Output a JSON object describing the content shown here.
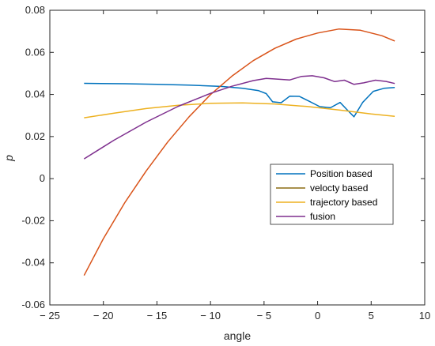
{
  "chart_data": {
    "type": "line",
    "xlabel": "angle",
    "ylabel": "p",
    "xlim": [
      -25,
      10
    ],
    "ylim": [
      -0.06,
      0.08
    ],
    "xticks": [
      -25,
      -20,
      -15,
      -10,
      -5,
      0,
      5,
      10
    ],
    "yticks": [
      -0.06,
      -0.04,
      -0.02,
      0,
      0.02,
      0.04,
      0.06,
      0.08
    ],
    "xtick_labels": [
      "− 25",
      "− 20",
      "− 15",
      "− 10",
      "− 5",
      "0",
      "5",
      "10"
    ],
    "ytick_labels": [
      "-0.06",
      "-0.04",
      "-0.02",
      "0",
      "0.02",
      "0.04",
      "0.06",
      "0.08"
    ],
    "grid": false,
    "legend_position": "lower-right",
    "series": [
      {
        "name": "Position based",
        "color": "#0072BD",
        "x": [
          -21.8,
          -18,
          -15,
          -12,
          -9,
          -7,
          -5.5,
          -4.8,
          -4.2,
          -3.4,
          -2.6,
          -1.7,
          -0.8,
          0.2,
          1.2,
          2.1,
          2.8,
          3.4,
          4.2,
          5.2,
          6.2,
          7.2
        ],
        "y": [
          0.0453,
          0.0451,
          0.0448,
          0.0444,
          0.0438,
          0.0429,
          0.0418,
          0.0404,
          0.0365,
          0.0361,
          0.0392,
          0.0391,
          0.0368,
          0.0342,
          0.0337,
          0.0362,
          0.0325,
          0.0294,
          0.0362,
          0.0415,
          0.0429,
          0.0433
        ]
      },
      {
        "name": "velocty based",
        "color": "#D95319",
        "legend_color": "#8C6D12",
        "x": [
          -21.8,
          -20,
          -18,
          -16,
          -14,
          -12,
          -10,
          -8,
          -6,
          -4,
          -2,
          0,
          2,
          4,
          6,
          7.2
        ],
        "y": [
          -0.046,
          -0.0285,
          -0.0114,
          0.0037,
          0.0174,
          0.0294,
          0.0399,
          0.0487,
          0.0561,
          0.0619,
          0.0663,
          0.0692,
          0.0711,
          0.0705,
          0.0679,
          0.0654
        ]
      },
      {
        "name": "trajectory based",
        "color": "#EDB120",
        "x": [
          -21.8,
          -19,
          -16,
          -13,
          -10,
          -7,
          -4,
          -1,
          2,
          5,
          7.2
        ],
        "y": [
          0.0289,
          0.0311,
          0.0333,
          0.0349,
          0.0358,
          0.036,
          0.0355,
          0.0343,
          0.0326,
          0.0307,
          0.0296
        ]
      },
      {
        "name": "fusion",
        "color": "#7E2F8E",
        "x": [
          -21.8,
          -19,
          -16,
          -13,
          -10,
          -8,
          -6,
          -4.8,
          -3.8,
          -2.6,
          -1.5,
          -0.5,
          0.6,
          1.6,
          2.5,
          3.4,
          4.3,
          5.4,
          6.4,
          7.2
        ],
        "y": [
          0.0094,
          0.0183,
          0.0269,
          0.0344,
          0.0405,
          0.0439,
          0.0466,
          0.0476,
          0.0473,
          0.0469,
          0.0486,
          0.0489,
          0.0479,
          0.0461,
          0.0468,
          0.0448,
          0.0455,
          0.0468,
          0.0462,
          0.0452
        ]
      }
    ]
  }
}
